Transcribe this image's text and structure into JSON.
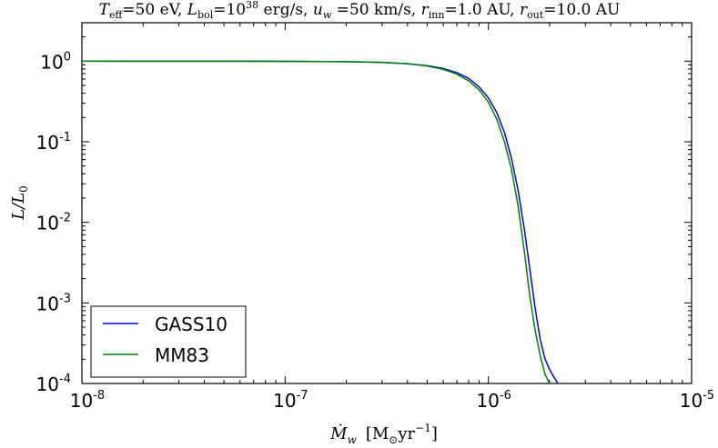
{
  "chart_data": {
    "type": "line",
    "title": "T_eff=50 eV, L_bol=10^38 erg/s, u_w=50 km/s, r_inn=1.0 AU, r_out=10.0 AU",
    "title_parts": {
      "teff_sym": "T",
      "teff_sub": "eff",
      "teff_val": "=50 eV, ",
      "lbol_sym": "L",
      "lbol_sub": "bol",
      "lbol_eq": "=10",
      "lbol_exp": "38",
      "lbol_unit": " erg/s, ",
      "uw_sym": "u",
      "uw_sub": "w",
      "uw_val": " =50 km/s, ",
      "rinn_sym": "r",
      "rinn_sub": "inn",
      "rinn_val": "=1.0 AU, ",
      "rout_sym": "r",
      "rout_sub": "out",
      "rout_val": "=10.0 AU"
    },
    "xlabel": "Ṁ_w [M_☉yr^-1]",
    "xlabel_parts": {
      "sym": "Ṁ",
      "sub": "w",
      "unit_open": "[M",
      "sun": "⊙",
      "unit_mid": "yr",
      "unit_exp": "−1",
      "unit_close": "]"
    },
    "ylabel": "L/L_0",
    "ylabel_parts": {
      "sym": "L/L",
      "sub": "0"
    },
    "x_scale": "log",
    "y_scale": "log",
    "xlim": [
      1e-08,
      1e-05
    ],
    "ylim": [
      0.0001,
      3
    ],
    "x_ticks": [
      {
        "value": 1e-08,
        "base": "10",
        "exp": "-8"
      },
      {
        "value": 1e-07,
        "base": "10",
        "exp": "-7"
      },
      {
        "value": 1e-06,
        "base": "10",
        "exp": "-6"
      },
      {
        "value": 1e-05,
        "base": "10",
        "exp": "-5"
      }
    ],
    "y_ticks": [
      {
        "value": 1,
        "base": "10",
        "exp": "0"
      },
      {
        "value": 0.1,
        "base": "10",
        "exp": "-1"
      },
      {
        "value": 0.01,
        "base": "10",
        "exp": "-2"
      },
      {
        "value": 0.001,
        "base": "10",
        "exp": "-3"
      },
      {
        "value": 0.0001,
        "base": "10",
        "exp": "-4"
      }
    ],
    "grid": false,
    "legend_position": "lower-left",
    "series": [
      {
        "name": "GASS10",
        "color": "#0000ff",
        "x": [
          1e-08,
          3e-08,
          1e-07,
          2e-07,
          3e-07,
          4e-07,
          5e-07,
          6e-07,
          7e-07,
          8e-07,
          9e-07,
          1e-06,
          1.1e-06,
          1.2e-06,
          1.3e-06,
          1.4e-06,
          1.5e-06,
          1.6e-06,
          1.7e-06,
          1.8e-06,
          1.9e-06,
          2e-06,
          2.1e-06,
          2.2e-06
        ],
        "y": [
          1.0,
          0.999,
          0.995,
          0.985,
          0.965,
          0.93,
          0.88,
          0.81,
          0.72,
          0.61,
          0.48,
          0.35,
          0.23,
          0.13,
          0.062,
          0.025,
          0.0085,
          0.0026,
          0.00085,
          0.00035,
          0.0002,
          0.00015,
          0.00012,
          0.0001
        ]
      },
      {
        "name": "MM83",
        "color": "#008000",
        "x": [
          1e-08,
          3e-08,
          1e-07,
          2e-07,
          3e-07,
          4e-07,
          5e-07,
          6e-07,
          7e-07,
          8e-07,
          9e-07,
          1e-06,
          1.1e-06,
          1.2e-06,
          1.3e-06,
          1.4e-06,
          1.5e-06,
          1.6e-06,
          1.7e-06,
          1.8e-06,
          1.9e-06,
          2e-06
        ],
        "y": [
          1.0,
          0.999,
          0.995,
          0.985,
          0.965,
          0.93,
          0.87,
          0.79,
          0.69,
          0.57,
          0.44,
          0.31,
          0.19,
          0.1,
          0.045,
          0.016,
          0.0045,
          0.0012,
          0.00045,
          0.00022,
          0.00013,
          0.0001
        ]
      }
    ]
  }
}
